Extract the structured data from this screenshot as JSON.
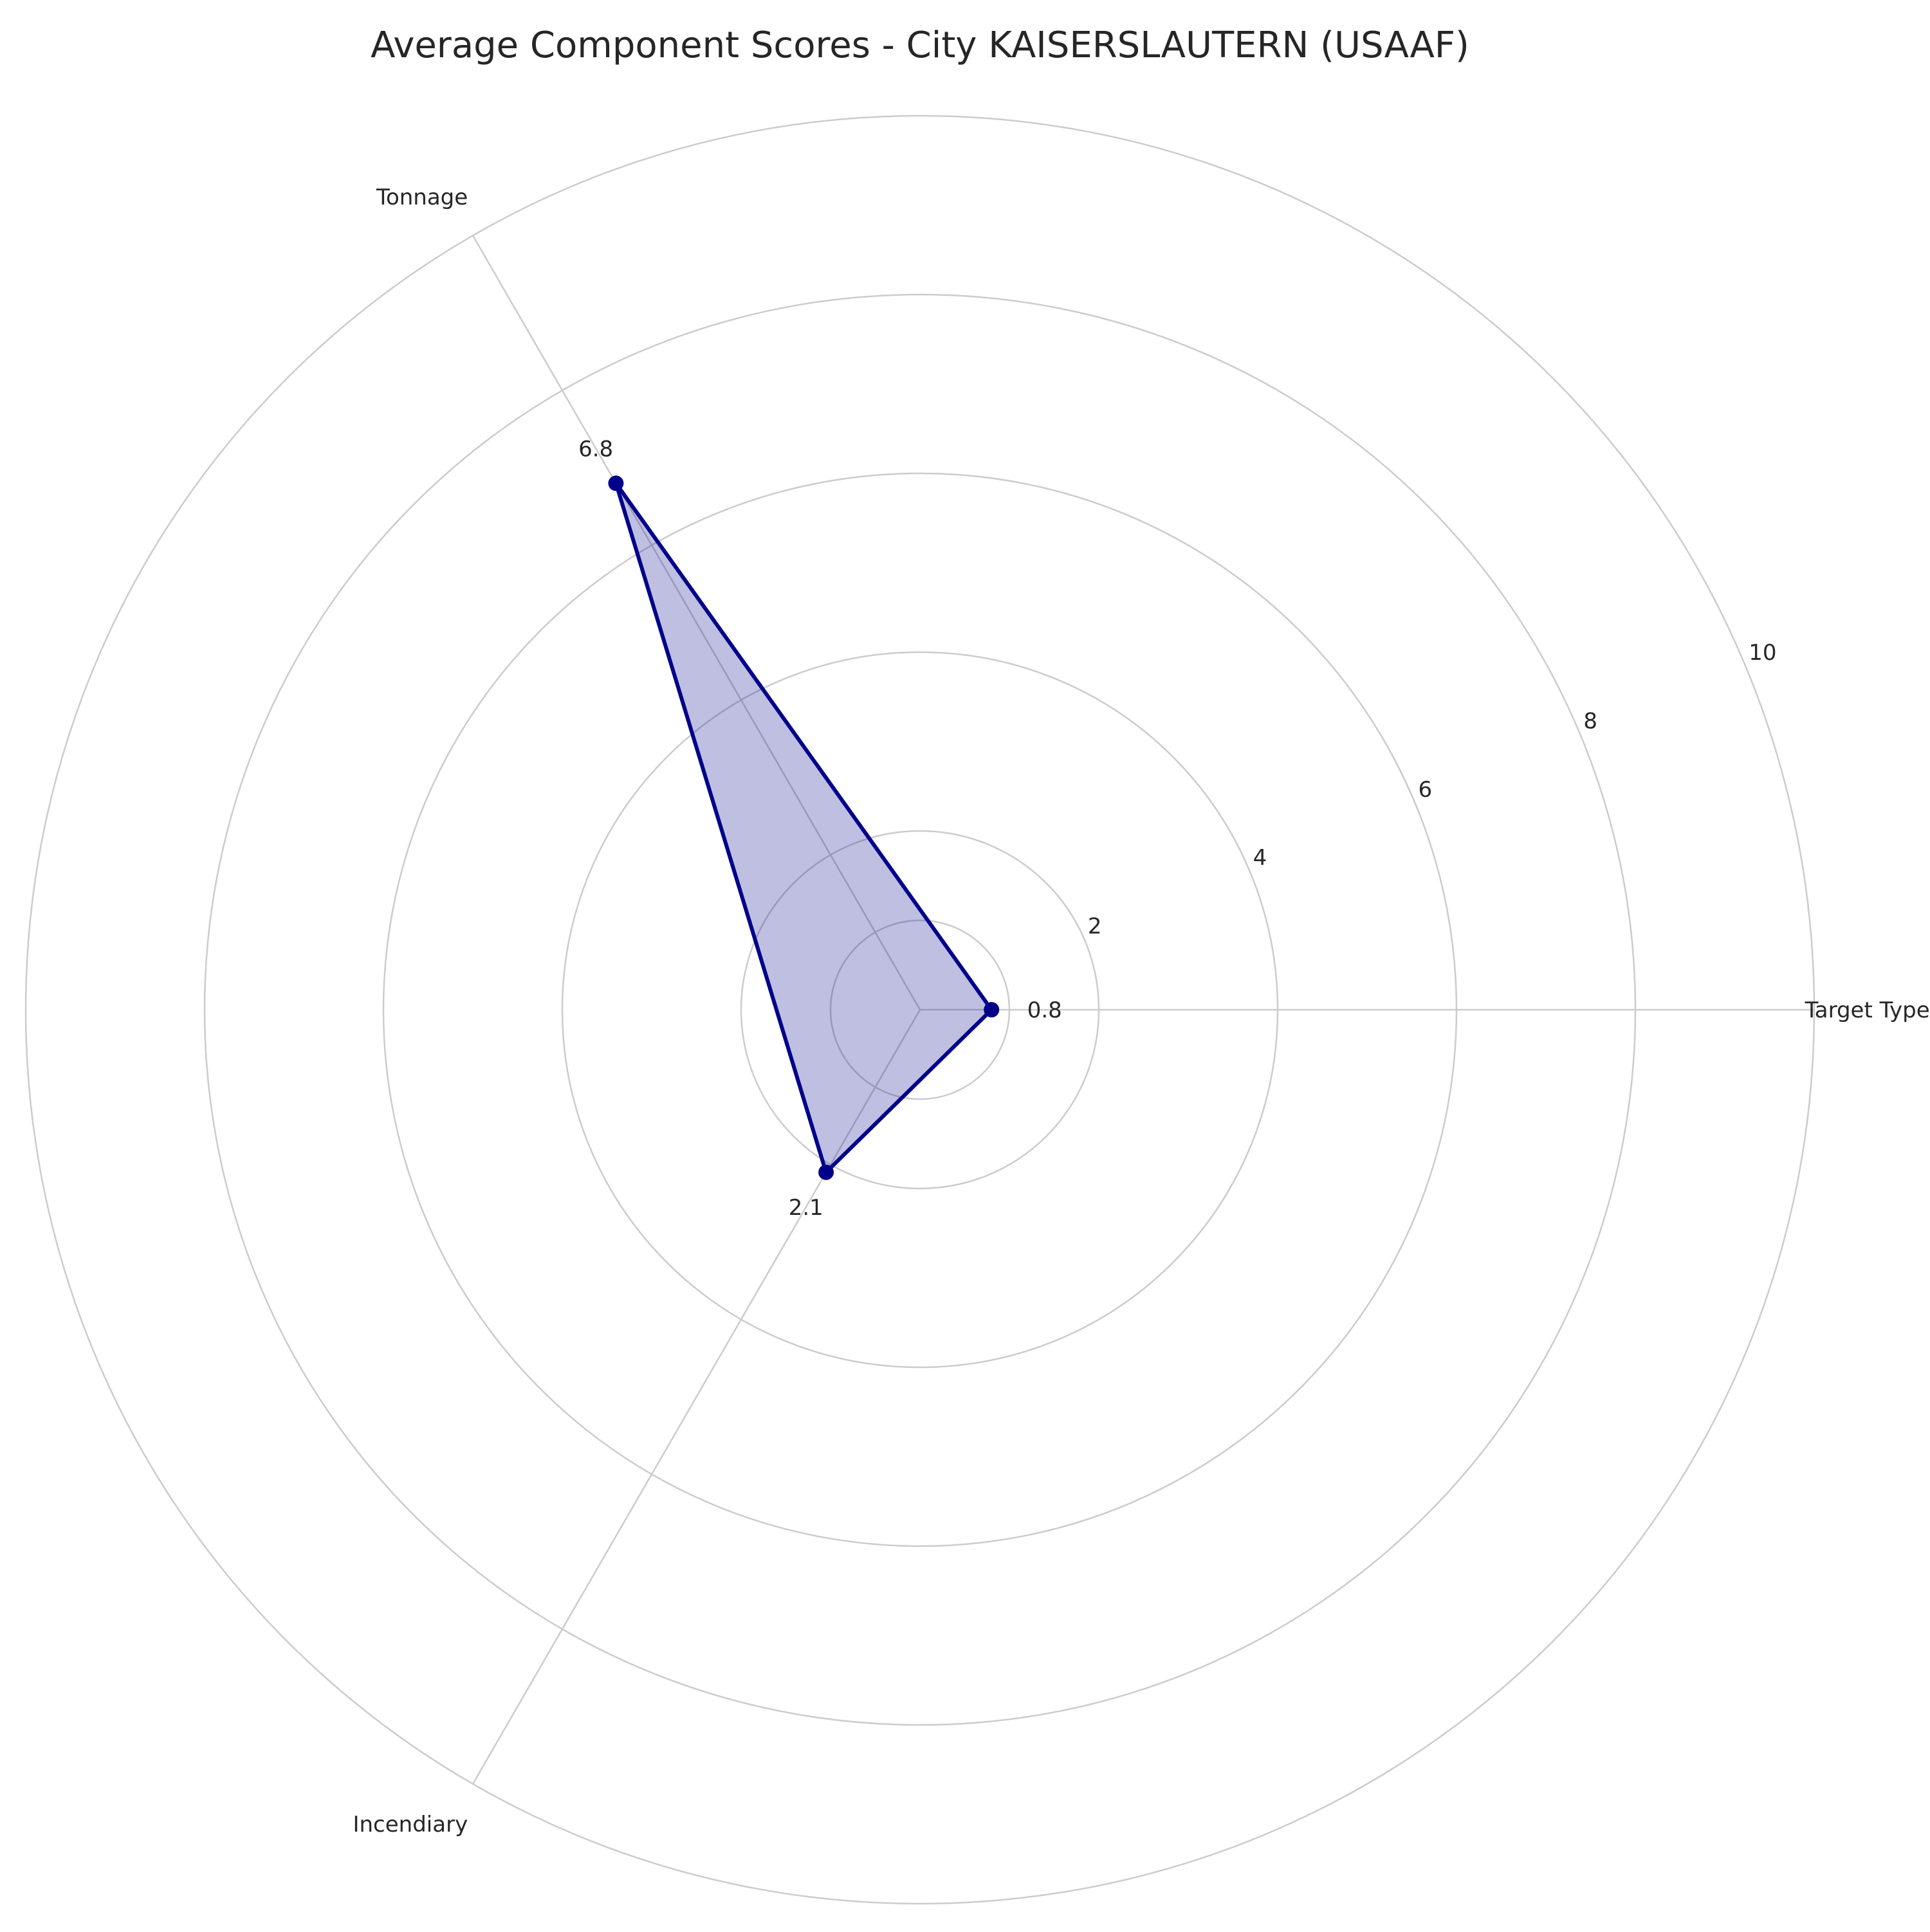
{
  "chart_data": {
    "type": "radar",
    "title": "Average Component Scores - City KAISERSLAUTERN (USAAF)",
    "categories": [
      "Target Type",
      "Tonnage",
      "Incendiary"
    ],
    "series": [
      {
        "values": [
          0.8,
          6.8,
          2.1
        ],
        "data_labels": [
          "0.8",
          "6.8",
          "2.1"
        ]
      }
    ],
    "radial_ticks": [
      2,
      4,
      6,
      8,
      10
    ],
    "radial_tick_labels": [
      "2",
      "4",
      "6",
      "8",
      "10"
    ],
    "rlim": [
      0,
      10
    ],
    "grid": true,
    "legend": "none",
    "colors": {
      "line": "#00008b",
      "fill": "#00008b",
      "grid": "#cccccc",
      "text": "#262626"
    }
  }
}
